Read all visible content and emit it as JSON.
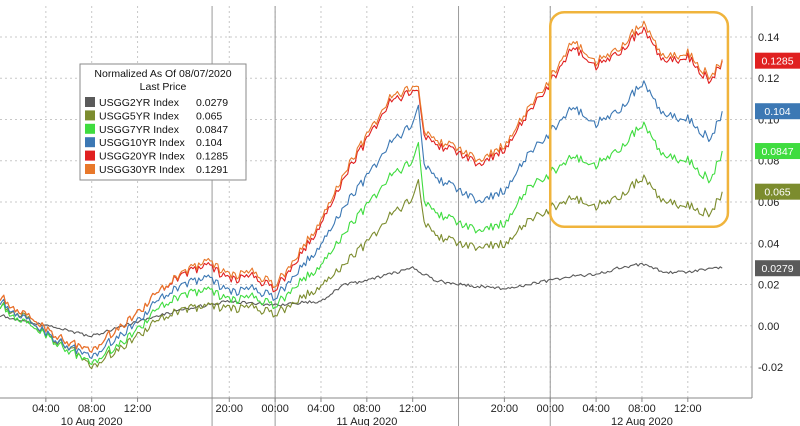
{
  "chart_data": {
    "type": "line",
    "legend": {
      "title_line1": "Normalized As Of 08/07/2020",
      "title_line2": "Last Price",
      "placement": "top-left"
    },
    "time_labels": [
      "04:00",
      "08:00",
      "12:00",
      "20:00",
      "00:00",
      "04:00",
      "08:00",
      "12:00",
      "20:00",
      "00:00",
      "04:00",
      "08:00",
      "12:00"
    ],
    "time_positions": [
      4,
      8,
      12,
      20,
      24,
      28,
      32,
      36,
      44,
      48,
      52,
      56,
      60
    ],
    "day_labels": [
      {
        "label": "10 Aug 2020",
        "t": 8
      },
      {
        "label": "11 Aug 2020",
        "t": 32
      },
      {
        "label": "12 Aug 2020",
        "t": 56
      }
    ],
    "session_breaks": [
      18.5,
      24,
      40,
      48
    ],
    "y_ticks": [
      "0.14",
      "0.12",
      "0.10",
      "0.08",
      "0.06",
      "0.04",
      "0.02",
      "0.00",
      "-0.02"
    ],
    "y_tick_values": [
      0.14,
      0.12,
      0.1,
      0.08,
      0.06,
      0.04,
      0.02,
      0.0,
      -0.02
    ],
    "ylim": [
      -0.035,
      0.155
    ],
    "xlim": [
      0,
      65.6
    ],
    "grid": true,
    "highlight": {
      "from": 48,
      "to": 63.5,
      "ymin": 0.048,
      "ymax": 0.152,
      "color": "#f0b43c"
    },
    "series": [
      {
        "name": "USGG2YR Index",
        "last_price": "0.0279",
        "last": 0.0279,
        "color": "#5a5a5a",
        "x": [
          0,
          4,
          8,
          12,
          16,
          20,
          24,
          28,
          30,
          32,
          34,
          36,
          38,
          40,
          44,
          46,
          48,
          50,
          52,
          54,
          56,
          58,
          60,
          62,
          63
        ],
        "y": [
          0.005,
          0.0,
          -0.005,
          0.002,
          0.008,
          0.012,
          0.01,
          0.012,
          0.02,
          0.022,
          0.025,
          0.028,
          0.022,
          0.02,
          0.018,
          0.02,
          0.022,
          0.024,
          0.025,
          0.028,
          0.03,
          0.026,
          0.026,
          0.028,
          0.0279
        ]
      },
      {
        "name": "USGG5YR Index",
        "last_price": "0.065",
        "last": 0.065,
        "color": "#7c8c2e",
        "x": [
          0,
          2,
          4,
          6,
          8,
          10,
          12,
          14,
          16,
          18,
          20,
          22,
          24,
          26,
          28,
          30,
          32,
          34,
          36,
          36.5,
          37,
          38,
          40,
          42,
          44,
          46,
          48,
          50,
          52,
          54,
          56,
          58,
          60,
          62,
          63
        ],
        "y": [
          0.01,
          0.005,
          -0.005,
          -0.01,
          -0.02,
          -0.012,
          -0.005,
          0.004,
          0.008,
          0.01,
          0.008,
          0.009,
          0.006,
          0.012,
          0.02,
          0.03,
          0.04,
          0.053,
          0.062,
          0.072,
          0.05,
          0.044,
          0.04,
          0.038,
          0.04,
          0.05,
          0.057,
          0.062,
          0.058,
          0.062,
          0.072,
          0.06,
          0.058,
          0.054,
          0.065
        ]
      },
      {
        "name": "USGG7YR Index",
        "last_price": "0.0847",
        "last": 0.0847,
        "color": "#3fdc3f",
        "x": [
          0,
          2,
          4,
          6,
          8,
          10,
          12,
          14,
          16,
          18,
          20,
          22,
          24,
          26,
          28,
          30,
          32,
          34,
          36,
          36.5,
          37,
          38,
          40,
          42,
          44,
          46,
          48,
          50,
          52,
          54,
          56,
          58,
          60,
          62,
          63
        ],
        "y": [
          0.01,
          0.002,
          -0.005,
          -0.012,
          -0.018,
          -0.01,
          -0.002,
          0.01,
          0.015,
          0.018,
          0.012,
          0.014,
          0.01,
          0.02,
          0.03,
          0.045,
          0.058,
          0.072,
          0.08,
          0.09,
          0.06,
          0.055,
          0.05,
          0.046,
          0.05,
          0.066,
          0.074,
          0.082,
          0.078,
          0.085,
          0.098,
          0.082,
          0.08,
          0.07,
          0.0847
        ]
      },
      {
        "name": "USGG10YR Index",
        "last_price": "0.104",
        "last": 0.104,
        "color": "#3c78b4",
        "x": [
          0,
          2,
          4,
          6,
          8,
          10,
          12,
          14,
          16,
          18,
          20,
          22,
          24,
          26,
          28,
          30,
          32,
          34,
          36,
          36.5,
          37,
          38,
          40,
          42,
          44,
          46,
          48,
          50,
          52,
          54,
          56,
          58,
          60,
          62,
          63
        ],
        "y": [
          0.012,
          0.004,
          -0.004,
          -0.01,
          -0.015,
          -0.006,
          0.002,
          0.014,
          0.02,
          0.024,
          0.016,
          0.018,
          0.014,
          0.026,
          0.04,
          0.058,
          0.072,
          0.088,
          0.098,
          0.108,
          0.078,
          0.072,
          0.066,
          0.06,
          0.066,
          0.082,
          0.094,
          0.106,
          0.098,
          0.104,
          0.118,
          0.102,
          0.1,
          0.09,
          0.104
        ]
      },
      {
        "name": "USGG20YR Index",
        "last_price": "0.1285",
        "last": 0.1285,
        "color": "#e02020",
        "x": [
          0,
          2,
          4,
          6,
          8,
          10,
          12,
          14,
          16,
          18,
          20,
          22,
          24,
          26,
          28,
          30,
          32,
          34,
          36,
          36.5,
          37,
          38,
          40,
          42,
          44,
          46,
          48,
          50,
          52,
          54,
          56,
          58,
          60,
          62,
          63
        ],
        "y": [
          0.014,
          0.006,
          -0.002,
          -0.008,
          -0.012,
          -0.002,
          0.006,
          0.018,
          0.025,
          0.03,
          0.022,
          0.024,
          0.018,
          0.032,
          0.05,
          0.072,
          0.09,
          0.108,
          0.114,
          0.115,
          0.092,
          0.088,
          0.084,
          0.078,
          0.086,
          0.102,
          0.118,
          0.135,
          0.126,
          0.132,
          0.144,
          0.128,
          0.13,
          0.118,
          0.1285
        ]
      },
      {
        "name": "USGG30YR Index",
        "last_price": "0.1291",
        "last": 0.1291,
        "color": "#e8782a",
        "x": [
          0,
          2,
          4,
          6,
          8,
          10,
          12,
          14,
          16,
          18,
          20,
          22,
          24,
          26,
          28,
          30,
          32,
          34,
          36,
          36.5,
          37,
          38,
          40,
          42,
          44,
          46,
          48,
          50,
          52,
          54,
          56,
          58,
          60,
          62,
          63
        ],
        "y": [
          0.014,
          0.006,
          -0.002,
          -0.008,
          -0.012,
          -0.002,
          0.006,
          0.018,
          0.026,
          0.032,
          0.024,
          0.026,
          0.02,
          0.034,
          0.052,
          0.074,
          0.092,
          0.11,
          0.116,
          0.117,
          0.094,
          0.09,
          0.086,
          0.08,
          0.088,
          0.104,
          0.12,
          0.138,
          0.128,
          0.134,
          0.147,
          0.13,
          0.132,
          0.12,
          0.1291
        ]
      }
    ]
  }
}
